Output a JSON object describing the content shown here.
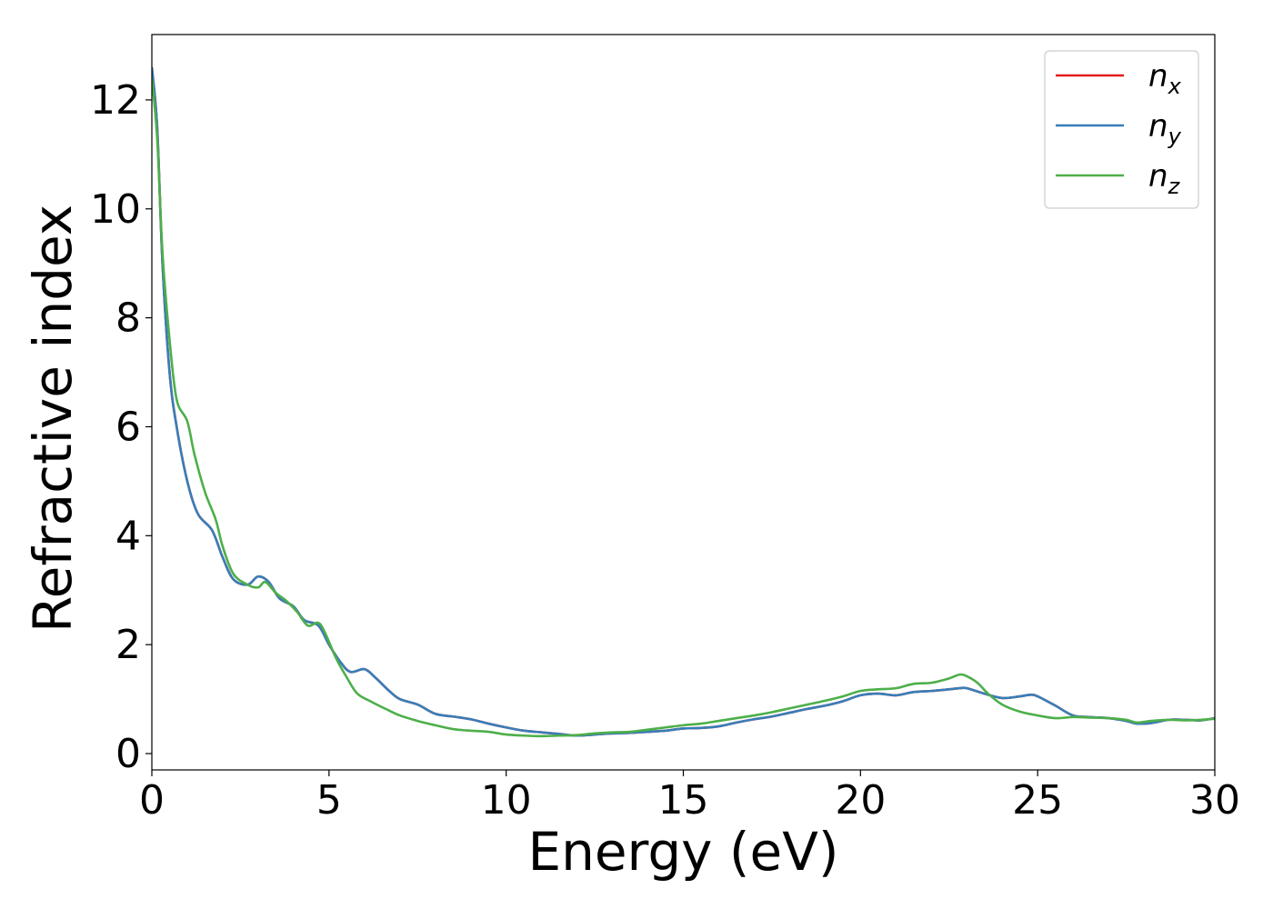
{
  "chart_data": {
    "type": "line",
    "xlabel": "Energy (eV)",
    "ylabel": "Refractive index",
    "xlim": [
      0,
      30
    ],
    "ylim": [
      -0.3,
      13.2
    ],
    "xticks": [
      "0",
      "5",
      "10",
      "15",
      "20",
      "25",
      "30"
    ],
    "yticks": [
      "0",
      "2",
      "4",
      "6",
      "8",
      "10",
      "12"
    ],
    "grid": false,
    "legend_position": "top-right",
    "series": [
      {
        "name": "n",
        "subscript": "x",
        "color": "#e41a1c",
        "x": [
          0,
          0.15,
          0.3,
          0.5,
          0.7,
          1.0,
          1.3,
          1.7,
          2.0,
          2.3,
          2.7,
          3.0,
          3.3,
          3.6,
          4.0,
          4.3,
          4.7,
          5.0,
          5.3,
          5.6,
          6.0,
          6.3,
          6.7,
          7.0,
          7.5,
          8.0,
          8.5,
          9.0,
          9.5,
          10.0,
          10.5,
          11.0,
          11.5,
          12.0,
          12.5,
          13.0,
          13.5,
          14.0,
          14.5,
          15.0,
          15.5,
          16.0,
          16.5,
          17.0,
          17.5,
          18.0,
          18.5,
          19.0,
          19.5,
          20.0,
          20.5,
          21.0,
          21.5,
          22.0,
          22.5,
          22.8,
          23.0,
          23.5,
          24.0,
          24.5,
          24.8,
          25.0,
          25.5,
          26.0,
          26.5,
          27.0,
          27.5,
          27.8,
          28.2,
          28.7,
          29.2,
          29.6,
          30.0
        ],
        "values": [
          12.6,
          11.5,
          9.0,
          7.0,
          6.0,
          5.0,
          4.4,
          4.1,
          3.6,
          3.2,
          3.1,
          3.25,
          3.15,
          2.85,
          2.7,
          2.45,
          2.35,
          2.0,
          1.7,
          1.5,
          1.55,
          1.4,
          1.15,
          1.0,
          0.9,
          0.73,
          0.68,
          0.63,
          0.55,
          0.48,
          0.42,
          0.39,
          0.36,
          0.33,
          0.35,
          0.37,
          0.38,
          0.4,
          0.42,
          0.46,
          0.47,
          0.5,
          0.57,
          0.63,
          0.68,
          0.75,
          0.82,
          0.88,
          0.96,
          1.07,
          1.1,
          1.07,
          1.13,
          1.15,
          1.18,
          1.2,
          1.2,
          1.1,
          1.02,
          1.05,
          1.08,
          1.05,
          0.88,
          0.7,
          0.67,
          0.65,
          0.6,
          0.55,
          0.56,
          0.62,
          0.62,
          0.61,
          0.65
        ]
      },
      {
        "name": "n",
        "subscript": "y",
        "color": "#377eb8",
        "x": [
          0,
          0.15,
          0.3,
          0.5,
          0.7,
          1.0,
          1.3,
          1.7,
          2.0,
          2.3,
          2.7,
          3.0,
          3.3,
          3.6,
          4.0,
          4.3,
          4.7,
          5.0,
          5.3,
          5.6,
          6.0,
          6.3,
          6.7,
          7.0,
          7.5,
          8.0,
          8.5,
          9.0,
          9.5,
          10.0,
          10.5,
          11.0,
          11.5,
          12.0,
          12.5,
          13.0,
          13.5,
          14.0,
          14.5,
          15.0,
          15.5,
          16.0,
          16.5,
          17.0,
          17.5,
          18.0,
          18.5,
          19.0,
          19.5,
          20.0,
          20.5,
          21.0,
          21.5,
          22.0,
          22.5,
          22.8,
          23.0,
          23.5,
          24.0,
          24.5,
          24.8,
          25.0,
          25.5,
          26.0,
          26.5,
          27.0,
          27.5,
          27.8,
          28.2,
          28.7,
          29.2,
          29.6,
          30.0
        ],
        "values": [
          12.6,
          11.5,
          9.0,
          7.0,
          6.0,
          5.0,
          4.4,
          4.1,
          3.6,
          3.2,
          3.1,
          3.25,
          3.15,
          2.85,
          2.7,
          2.45,
          2.35,
          2.0,
          1.7,
          1.5,
          1.55,
          1.4,
          1.15,
          1.0,
          0.9,
          0.73,
          0.68,
          0.63,
          0.55,
          0.48,
          0.42,
          0.39,
          0.36,
          0.33,
          0.35,
          0.37,
          0.38,
          0.4,
          0.42,
          0.46,
          0.47,
          0.5,
          0.57,
          0.63,
          0.68,
          0.75,
          0.82,
          0.88,
          0.96,
          1.07,
          1.1,
          1.07,
          1.13,
          1.15,
          1.18,
          1.2,
          1.2,
          1.1,
          1.02,
          1.05,
          1.08,
          1.05,
          0.88,
          0.7,
          0.67,
          0.65,
          0.6,
          0.55,
          0.56,
          0.62,
          0.62,
          0.61,
          0.65
        ]
      },
      {
        "name": "n",
        "subscript": "z",
        "color": "#4daf4a",
        "x": [
          0,
          0.15,
          0.3,
          0.5,
          0.7,
          1.0,
          1.2,
          1.5,
          1.8,
          2.0,
          2.3,
          2.7,
          3.0,
          3.2,
          3.5,
          3.8,
          4.1,
          4.4,
          4.7,
          4.9,
          5.2,
          5.5,
          5.8,
          6.2,
          6.6,
          7.0,
          7.5,
          8.0,
          8.5,
          9.0,
          9.5,
          10.0,
          10.5,
          11.0,
          11.5,
          12.0,
          12.5,
          13.0,
          13.5,
          14.0,
          14.5,
          15.0,
          15.5,
          16.0,
          16.5,
          17.0,
          17.5,
          18.0,
          18.5,
          19.0,
          19.5,
          20.0,
          20.5,
          21.0,
          21.5,
          22.0,
          22.5,
          22.8,
          23.0,
          23.3,
          23.6,
          24.0,
          24.5,
          25.0,
          25.5,
          26.0,
          26.5,
          27.0,
          27.5,
          27.8,
          28.2,
          28.7,
          29.2,
          29.6,
          30.0
        ],
        "values": [
          12.4,
          11.3,
          9.2,
          7.6,
          6.5,
          6.1,
          5.5,
          4.8,
          4.3,
          3.8,
          3.3,
          3.1,
          3.05,
          3.15,
          2.95,
          2.8,
          2.6,
          2.35,
          2.4,
          2.2,
          1.75,
          1.4,
          1.1,
          0.95,
          0.82,
          0.7,
          0.6,
          0.52,
          0.45,
          0.42,
          0.4,
          0.35,
          0.33,
          0.32,
          0.33,
          0.34,
          0.37,
          0.39,
          0.4,
          0.44,
          0.48,
          0.52,
          0.55,
          0.6,
          0.65,
          0.7,
          0.76,
          0.83,
          0.9,
          0.97,
          1.05,
          1.15,
          1.18,
          1.2,
          1.28,
          1.3,
          1.38,
          1.45,
          1.42,
          1.3,
          1.1,
          0.9,
          0.77,
          0.7,
          0.65,
          0.67,
          0.66,
          0.65,
          0.62,
          0.57,
          0.6,
          0.62,
          0.61,
          0.62,
          0.64
        ]
      }
    ]
  }
}
